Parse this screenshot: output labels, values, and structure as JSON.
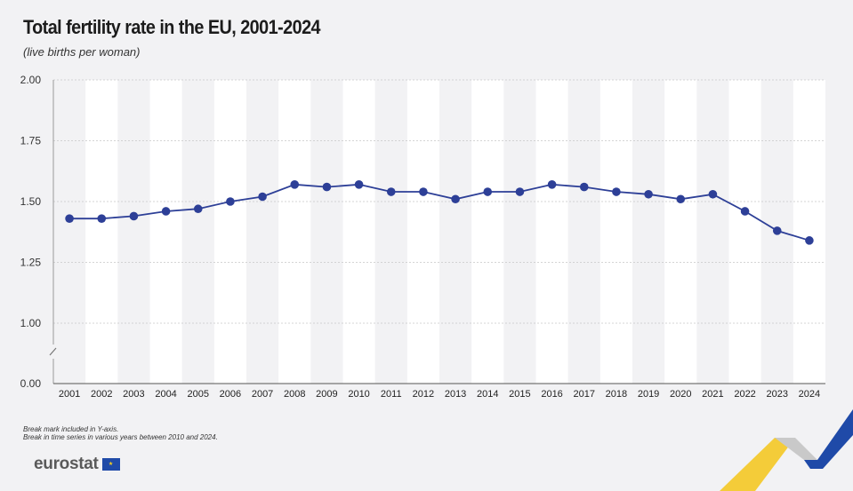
{
  "title": "Total fertility rate in the EU, 2001-2024",
  "subtitle": "(live births per woman)",
  "notes": [
    "Break mark included in Y-axis.",
    "Break in time series in various years between 2010 and 2024."
  ],
  "logo_text": "eurostat",
  "colors": {
    "line": "#2d3f97",
    "band": "#ffffff",
    "background": "#f2f2f4",
    "grid": "#c8c8c8",
    "accent_yellow": "#f5c518",
    "accent_blue": "#1f4aa8"
  },
  "chart_data": {
    "type": "line",
    "title": "Total fertility rate in the EU, 2001-2024",
    "subtitle": "(live births per woman)",
    "x": [
      "2001",
      "2002",
      "2003",
      "2004",
      "2005",
      "2006",
      "2007",
      "2008",
      "2009",
      "2010",
      "2011",
      "2012",
      "2013",
      "2014",
      "2015",
      "2016",
      "2017",
      "2018",
      "2019",
      "2020",
      "2021",
      "2022",
      "2023",
      "2024"
    ],
    "series": [
      {
        "values": [
          1.43,
          1.43,
          1.44,
          1.46,
          1.47,
          1.5,
          1.52,
          1.57,
          1.56,
          1.57,
          1.54,
          1.54,
          1.51,
          1.54,
          1.54,
          1.57,
          1.56,
          1.54,
          1.53,
          1.51,
          1.53,
          1.46,
          1.38,
          1.34
        ]
      }
    ],
    "y_ticks": [
      "0.00",
      "1.00",
      "1.25",
      "1.50",
      "1.75",
      "2.00"
    ],
    "y_axis_break": true,
    "ylim": [
      0,
      2
    ],
    "xlabel": "",
    "ylabel": "",
    "grid": true,
    "legend": "none"
  }
}
